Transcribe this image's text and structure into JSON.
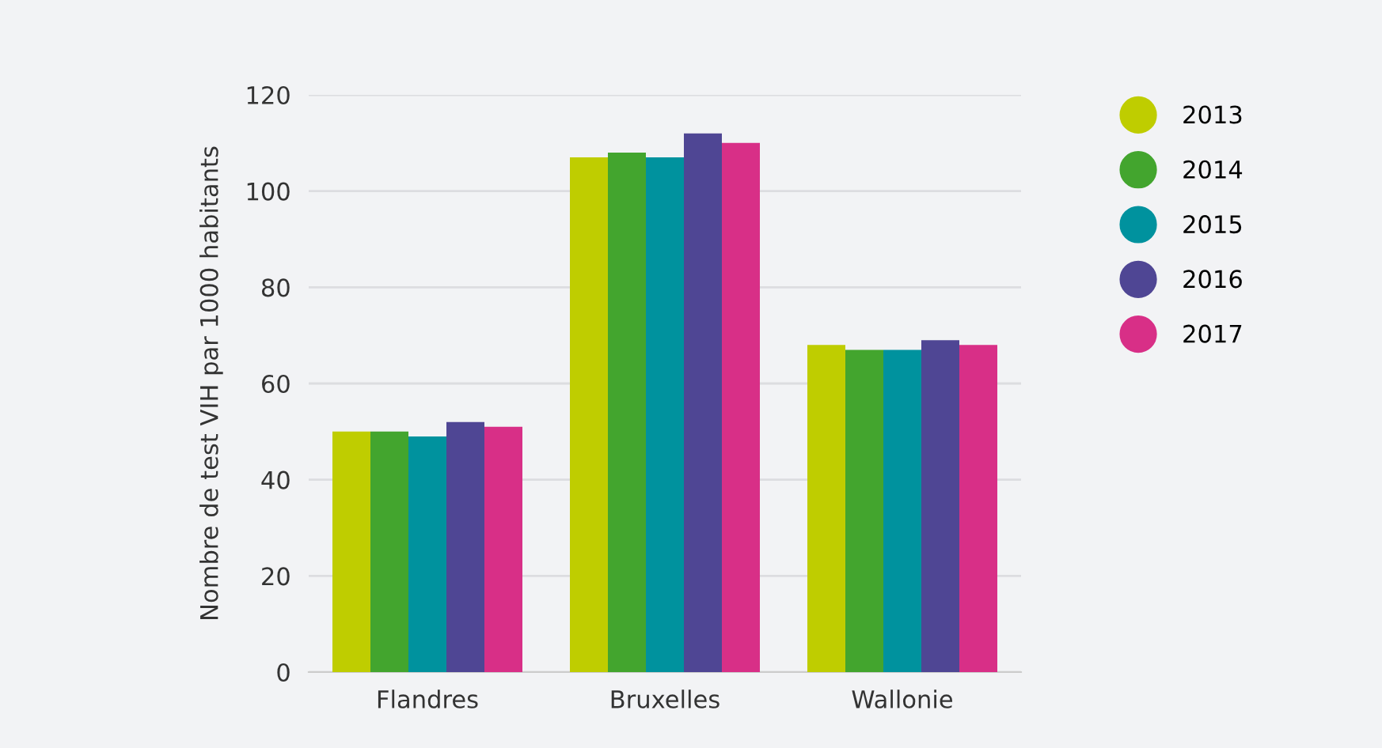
{
  "chart_data": {
    "type": "bar",
    "ylabel": "Nombre de test VIH par 1000 habitants",
    "categories": [
      "Flandres",
      "Bruxelles",
      "Wallonie"
    ],
    "series": [
      {
        "name": "2013",
        "color": "#bfcd00",
        "values": [
          50,
          107,
          68
        ]
      },
      {
        "name": "2014",
        "color": "#43a52e",
        "values": [
          50,
          108,
          67
        ]
      },
      {
        "name": "2015",
        "color": "#00929e",
        "values": [
          49,
          107,
          67
        ]
      },
      {
        "name": "2016",
        "color": "#4f4694",
        "values": [
          52,
          112,
          69
        ]
      },
      {
        "name": "2017",
        "color": "#d82f87",
        "values": [
          51,
          110,
          68
        ]
      }
    ],
    "ylim": [
      0,
      120
    ],
    "yticks": [
      0,
      20,
      40,
      60,
      80,
      100,
      120
    ],
    "grid": "y",
    "legend": "right"
  }
}
